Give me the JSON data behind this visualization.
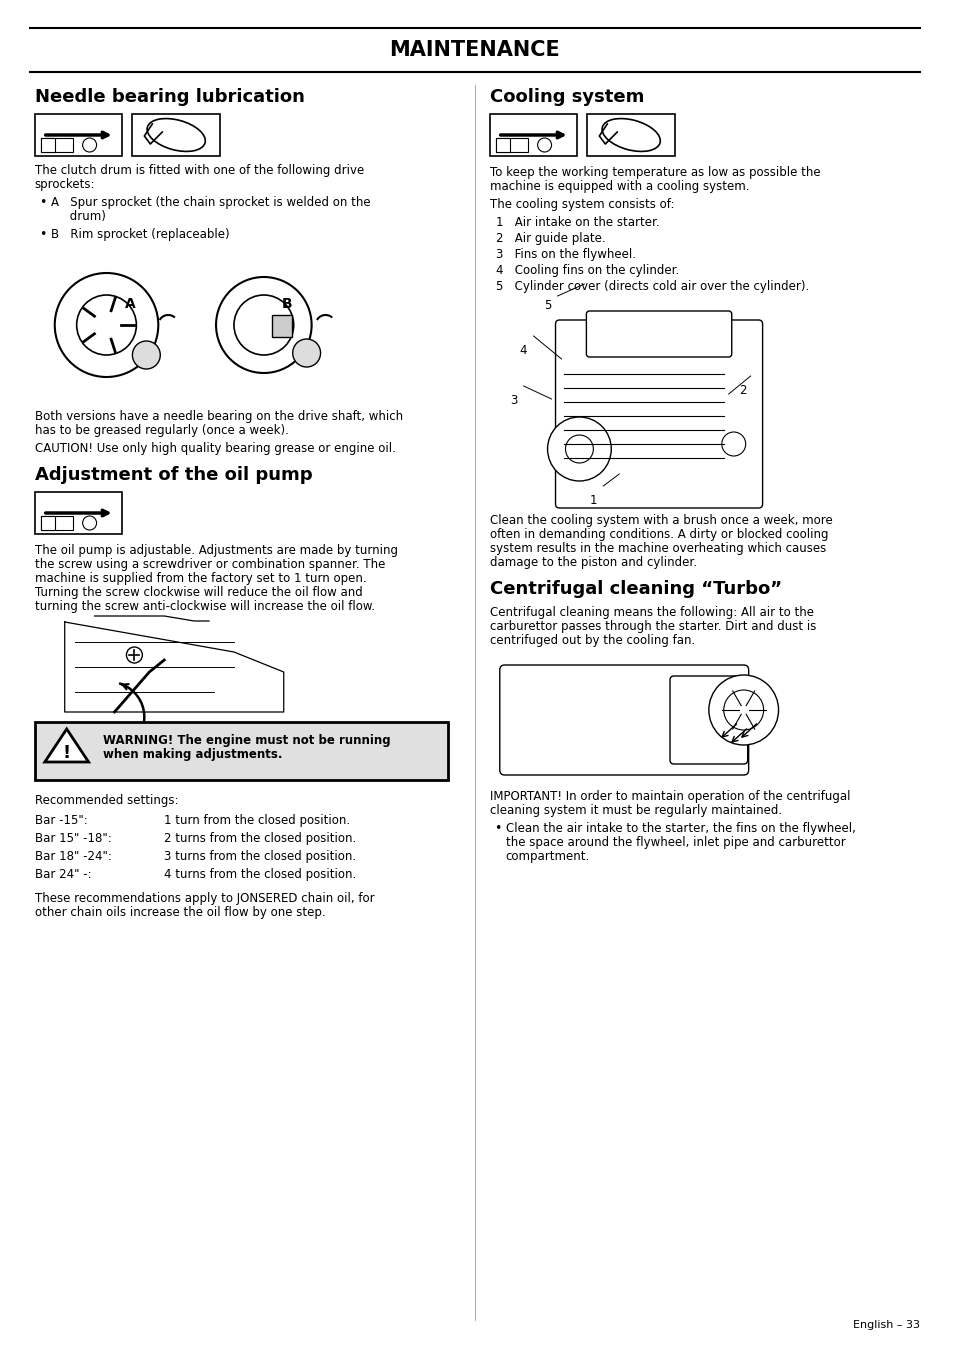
{
  "title": "MAINTENANCE",
  "page_number": "English – 33",
  "bg_color": "#ffffff",
  "sections": {
    "left": {
      "needle_heading": "Needle bearing lubrication",
      "needle_body1_line1": "The clutch drum is fitted with one of the following drive",
      "needle_body1_line2": "sprockets:",
      "needle_bullet1_line1": "A   Spur sprocket (the chain sprocket is welded on the",
      "needle_bullet1_line2": "     drum)",
      "needle_bullet2": "B   Rim sprocket (replaceable)",
      "needle_body2_line1": "Both versions have a needle bearing on the drive shaft, which",
      "needle_body2_line2": "has to be greased regularly (once a week).",
      "needle_body3": "CAUTION! Use only high quality bearing grease or engine oil.",
      "oil_heading": "Adjustment of the oil pump",
      "oil_body_line1": "The oil pump is adjustable. Adjustments are made by turning",
      "oil_body_line2": "the screw using a screwdriver or combination spanner. The",
      "oil_body_line3": "machine is supplied from the factory set to 1 turn open.",
      "oil_body_line4": "Turning the screw clockwise will reduce the oil flow and",
      "oil_body_line5": "turning the screw anti-clockwise will increase the oil flow.",
      "warning_line1": "WARNING! The engine must not be running",
      "warning_line2": "when making adjustments.",
      "recommended": "Recommended settings:",
      "settings": [
        [
          "Bar -15\":",
          "1 turn from the closed position."
        ],
        [
          "Bar 15\" -18\":",
          "2 turns from the closed position."
        ],
        [
          "Bar 18\" -24\":",
          "3 turns from the closed position."
        ],
        [
          "Bar 24\" -:",
          "4 turns from the closed position."
        ]
      ],
      "footer_line1": "These recommendations apply to JONSERED chain oil, for",
      "footer_line2": "other chain oils increase the oil flow by one step."
    },
    "right": {
      "cooling_heading": "Cooling system",
      "cooling_body1_line1": "To keep the working temperature as low as possible the",
      "cooling_body1_line2": "machine is equipped with a cooling system.",
      "cooling_body2": "The cooling system consists of:",
      "cooling_list": [
        "1   Air intake on the starter.",
        "2   Air guide plate.",
        "3   Fins on the flywheel.",
        "4   Cooling fins on the cylinder.",
        "5   Cylinder cover (directs cold air over the cylinder)."
      ],
      "cooling_body3_line1": "Clean the cooling system with a brush once a week, more",
      "cooling_body3_line2": "often in demanding conditions. A dirty or blocked cooling",
      "cooling_body3_line3": "system results in the machine overheating which causes",
      "cooling_body3_line4": "damage to the piston and cylinder.",
      "centrifugal_heading": "Centrifugal cleaning “Turbo”",
      "centrifugal_body1_line1": "Centrifugal cleaning means the following: All air to the",
      "centrifugal_body1_line2": "carburettor passes through the starter. Dirt and dust is",
      "centrifugal_body1_line3": "centrifuged out by the cooling fan.",
      "centrifugal_body2_line1": "IMPORTANT! In order to maintain operation of the centrifugal",
      "centrifugal_body2_line2": "cleaning system it must be regularly maintained.",
      "centrifugal_bullet_line1": "Clean the air intake to the starter, the fins on the flywheel,",
      "centrifugal_bullet_line2": "the space around the flywheel, inlet pipe and carburettor",
      "centrifugal_bullet_line3": "compartment."
    }
  }
}
